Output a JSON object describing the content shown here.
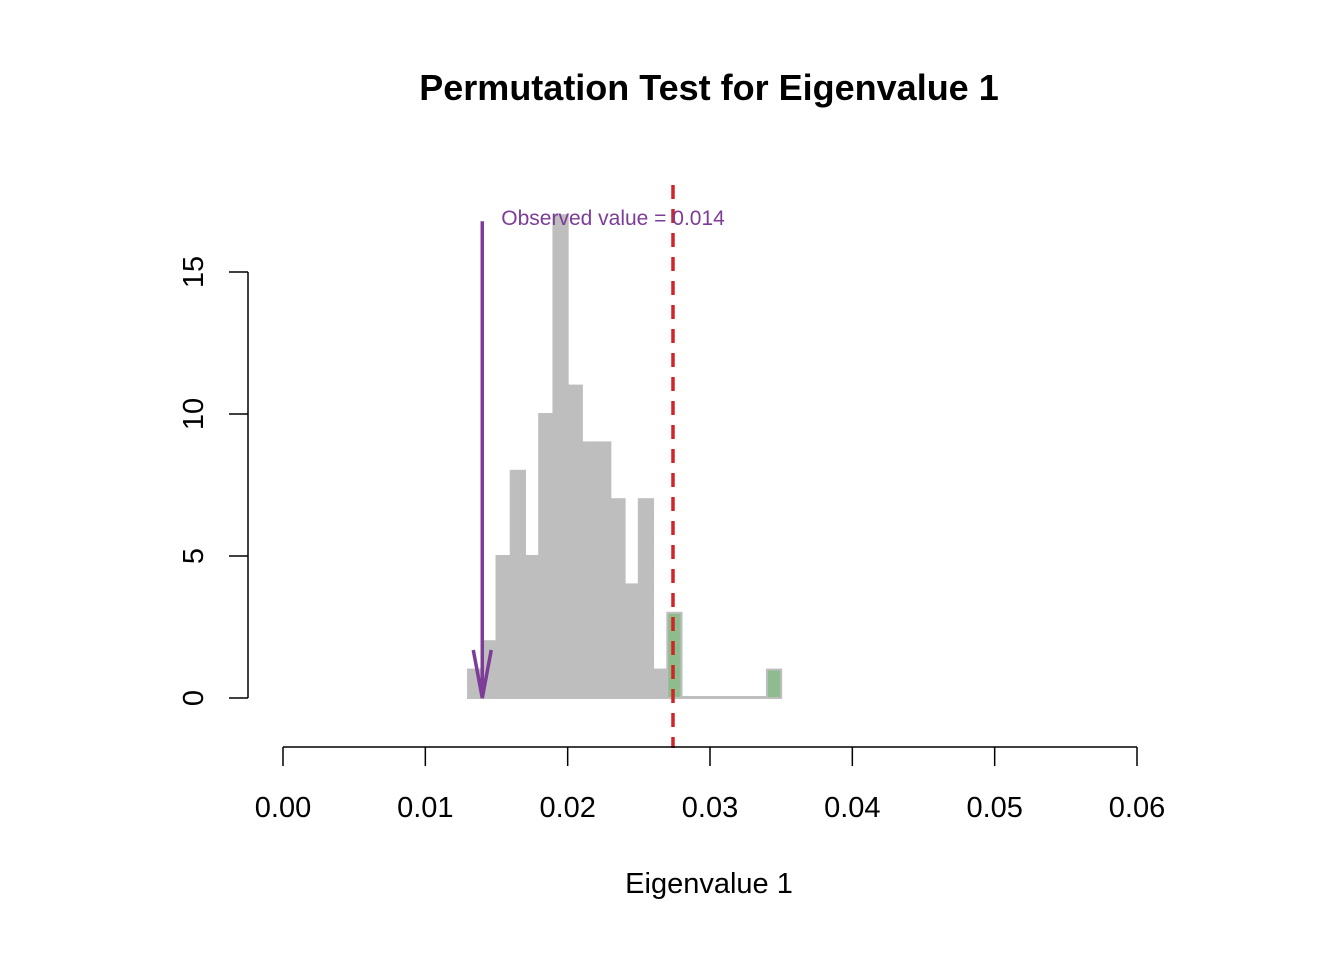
{
  "chart_data": {
    "type": "bar",
    "title": "Permutation Test for Eigenvalue 1",
    "xlabel": "Eigenvalue 1",
    "ylabel": "",
    "xlim": [
      0,
      0.06
    ],
    "ylim": [
      0,
      17
    ],
    "x_ticks": [
      "0.00",
      "0.01",
      "0.02",
      "0.03",
      "0.04",
      "0.05",
      "0.06"
    ],
    "x_tick_values": [
      0,
      0.01,
      0.02,
      0.03,
      0.04,
      0.05,
      0.06
    ],
    "y_ticks": [
      "0",
      "5",
      "10",
      "15"
    ],
    "y_tick_values": [
      0,
      5,
      10,
      15
    ],
    "bin_width": 0.001,
    "bins": [
      {
        "x0": 0.013,
        "count": 1
      },
      {
        "x0": 0.014,
        "count": 2
      },
      {
        "x0": 0.015,
        "count": 5
      },
      {
        "x0": 0.016,
        "count": 8
      },
      {
        "x0": 0.017,
        "count": 5
      },
      {
        "x0": 0.018,
        "count": 10
      },
      {
        "x0": 0.019,
        "count": 17
      },
      {
        "x0": 0.02,
        "count": 11
      },
      {
        "x0": 0.021,
        "count": 9
      },
      {
        "x0": 0.022,
        "count": 9
      },
      {
        "x0": 0.023,
        "count": 7
      },
      {
        "x0": 0.024,
        "count": 4
      },
      {
        "x0": 0.025,
        "count": 7
      },
      {
        "x0": 0.026,
        "count": 1
      },
      {
        "x0": 0.027,
        "count": 3
      },
      {
        "x0": 0.028,
        "count": 0
      },
      {
        "x0": 0.029,
        "count": 0
      },
      {
        "x0": 0.03,
        "count": 0
      },
      {
        "x0": 0.031,
        "count": 0
      },
      {
        "x0": 0.032,
        "count": 0
      },
      {
        "x0": 0.033,
        "count": 0
      },
      {
        "x0": 0.034,
        "count": 1
      }
    ],
    "highlight_from": 0.0274,
    "critical_value": 0.0274,
    "observed": {
      "value": 0.014,
      "label": "Observed value = 0.014",
      "arrow_top": 17
    },
    "grid": false,
    "colors": {
      "bar": "#bebebe",
      "highlight": "#8fbc8f",
      "critical_line": "#cd2626",
      "observed": "#7d3c98",
      "axis": "#000000"
    }
  }
}
